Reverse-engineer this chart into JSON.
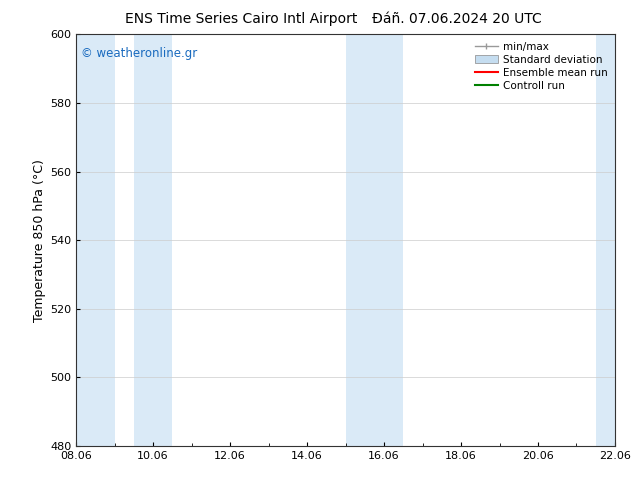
{
  "title_left": "ENS Time Series Cairo Intl Airport",
  "title_right": "Đáñ. 07.06.2024 20 UTC",
  "ylabel": "Temperature 850 hPa (°C)",
  "xlabel_ticks": [
    "08.06",
    "10.06",
    "12.06",
    "14.06",
    "16.06",
    "18.06",
    "20.06",
    "22.06"
  ],
  "xlim_days": [
    0,
    14
  ],
  "ylim": [
    480,
    600
  ],
  "yticks": [
    480,
    500,
    520,
    540,
    560,
    580,
    600
  ],
  "bg_color": "#ffffff",
  "plot_bg_color": "#ffffff",
  "watermark_text": "© weatheronline.gr",
  "watermark_color": "#1a6bbf",
  "shaded_bands": [
    {
      "x_start": 0.0,
      "x_end": 1.0,
      "color": "#daeaf7"
    },
    {
      "x_start": 1.5,
      "x_end": 2.5,
      "color": "#daeaf7"
    },
    {
      "x_start": 7.0,
      "x_end": 8.5,
      "color": "#daeaf7"
    },
    {
      "x_start": 13.5,
      "x_end": 14.0,
      "color": "#daeaf7"
    }
  ],
  "legend_items": [
    {
      "label": "min/max",
      "color": "#999999",
      "type": "errorbar"
    },
    {
      "label": "Standard deviation",
      "color": "#c5ddf0",
      "type": "rect"
    },
    {
      "label": "Ensemble mean run",
      "color": "#ff0000",
      "type": "line"
    },
    {
      "label": "Controll run",
      "color": "#008000",
      "type": "line"
    }
  ],
  "grid_color": "#cccccc",
  "tick_label_fontsize": 8,
  "axis_label_fontsize": 9,
  "title_fontsize": 10,
  "legend_fontsize": 7.5
}
